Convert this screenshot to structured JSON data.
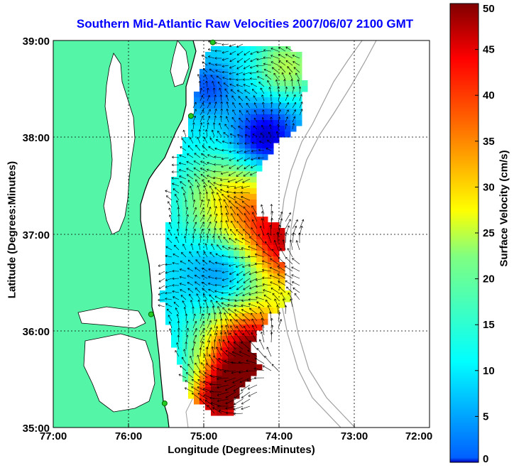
{
  "title": "Southern Mid-Atlantic Raw Velocities 2007/06/07 2100 GMT",
  "axes": {
    "xlabel": "Longitude (Degrees:Minutes)",
    "ylabel": "Latitude (Degrees:Minutes)",
    "x_ticks": [
      "77:00",
      "76:00",
      "75:00",
      "74:00",
      "73:00",
      "72:00"
    ],
    "y_ticks": [
      "39:00",
      "38:00",
      "37:00",
      "36:00",
      "35:00"
    ],
    "xlim": [
      -77,
      -72
    ],
    "ylim": [
      35,
      39
    ],
    "grid": true
  },
  "colorbar": {
    "label": "Surface Velocity (cm/s)",
    "ticks": [
      "0",
      "5",
      "10",
      "15",
      "20",
      "25",
      "30",
      "35",
      "40",
      "45",
      "50"
    ],
    "range": [
      0,
      50
    ],
    "colormap": "jet"
  },
  "colors": {
    "land": "#55f5a8",
    "title": "#0000ff",
    "bathymetry": "#a0a0a0",
    "station": "#22cc22"
  },
  "stations": [
    {
      "lon": -74.88,
      "lat": 38.98
    },
    {
      "lon": -75.17,
      "lat": 38.22
    },
    {
      "lon": -75.7,
      "lat": 36.17
    },
    {
      "lon": -75.52,
      "lat": 35.25
    }
  ]
}
